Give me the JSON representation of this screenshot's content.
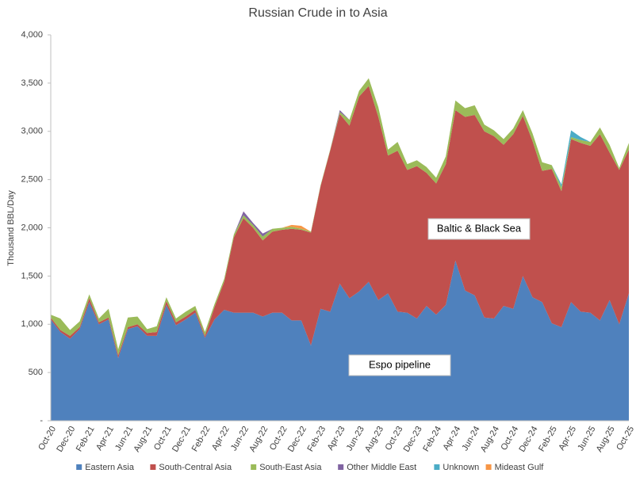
{
  "chart_data": {
    "type": "stacked_area",
    "title": "Russian Crude in to Asia",
    "y_label": "Thousand BBL/Day",
    "categories": [
      "Oct-20",
      null,
      "Dec-20",
      null,
      "Feb-21",
      null,
      "Apr-21",
      null,
      "Jun-21",
      null,
      "Aug-21",
      null,
      "Oct-21",
      null,
      "Dec-21",
      null,
      "Feb-22",
      null,
      "Apr-22",
      null,
      "Jun-22",
      null,
      "Aug-22",
      null,
      "Oct-22",
      null,
      "Dec-22",
      null,
      "Feb-23",
      null,
      "Apr-23",
      null,
      "Jun-23",
      null,
      "Aug-23",
      null,
      "Oct-23",
      null,
      "Dec-23",
      null,
      "Feb-24",
      null,
      "Apr-24",
      null,
      "Jun-24",
      null,
      "Aug-24",
      null,
      "Oct-24",
      null,
      "Dec-24",
      null,
      "Feb-25",
      null,
      "Apr-25",
      null,
      "Jun-25",
      null,
      "Aug-25",
      null,
      "Oct-25"
    ],
    "series": [
      {
        "name": "Eastern Asia",
        "color": "#4f81bd",
        "values": [
          1050,
          920,
          850,
          950,
          1230,
          1000,
          1050,
          650,
          950,
          980,
          880,
          880,
          1200,
          990,
          1050,
          1120,
          860,
          1050,
          1150,
          1120,
          1120,
          1120,
          1080,
          1120,
          1120,
          1040,
          1040,
          780,
          1160,
          1130,
          1420,
          1270,
          1340,
          1440,
          1250,
          1320,
          1130,
          1120,
          1060,
          1190,
          1100,
          1200,
          1660,
          1350,
          1300,
          1070,
          1060,
          1190,
          1160,
          1500,
          1280,
          1230,
          1010,
          970,
          1230,
          1130,
          1120,
          1040,
          1250,
          1000,
          1320
        ]
      },
      {
        "name": "South-Central Asia",
        "color": "#c0504d",
        "values": [
          20,
          20,
          30,
          20,
          40,
          20,
          20,
          30,
          20,
          20,
          30,
          40,
          40,
          30,
          30,
          30,
          20,
          130,
          290,
          780,
          980,
          880,
          790,
          840,
          860,
          950,
          940,
          1170,
          1270,
          1670,
          1760,
          1790,
          2020,
          2030,
          1900,
          1430,
          1670,
          1480,
          1580,
          1380,
          1360,
          1460,
          1560,
          1800,
          1870,
          1930,
          1890,
          1670,
          1810,
          1660,
          1620,
          1360,
          1600,
          1410,
          1690,
          1750,
          1730,
          1930,
          1530,
          1600,
          1490
        ]
      },
      {
        "name": "South-East Asia",
        "color": "#9bbb59",
        "values": [
          30,
          120,
          60,
          60,
          40,
          40,
          90,
          60,
          100,
          80,
          40,
          60,
          40,
          40,
          50,
          40,
          40,
          30,
          30,
          30,
          30,
          30,
          40,
          30,
          20,
          20,
          10,
          10,
          10,
          10,
          20,
          60,
          60,
          80,
          100,
          60,
          90,
          60,
          60,
          60,
          60,
          80,
          100,
          90,
          100,
          70,
          60,
          60,
          60,
          60,
          80,
          90,
          40,
          40,
          20,
          30,
          40,
          70,
          80,
          20,
          70
        ]
      },
      {
        "name": "Other Middle East",
        "color": "#8064a2",
        "values": [
          0,
          0,
          0,
          0,
          0,
          0,
          0,
          0,
          0,
          0,
          0,
          0,
          0,
          0,
          0,
          0,
          0,
          0,
          0,
          0,
          40,
          20,
          30,
          0,
          0,
          0,
          0,
          0,
          0,
          0,
          20,
          0,
          0,
          0,
          0,
          0,
          0,
          0,
          0,
          0,
          0,
          0,
          0,
          0,
          0,
          0,
          0,
          0,
          0,
          0,
          0,
          0,
          0,
          0,
          0,
          0,
          0,
          0,
          0,
          0,
          0
        ]
      },
      {
        "name": "Unknown",
        "color": "#4bacc6",
        "values": [
          0,
          0,
          0,
          0,
          0,
          0,
          0,
          0,
          0,
          0,
          0,
          0,
          0,
          0,
          0,
          0,
          0,
          0,
          0,
          0,
          0,
          0,
          0,
          0,
          0,
          0,
          0,
          0,
          0,
          0,
          0,
          0,
          0,
          0,
          0,
          0,
          0,
          0,
          0,
          0,
          0,
          0,
          0,
          0,
          0,
          0,
          0,
          0,
          0,
          0,
          0,
          0,
          0,
          30,
          70,
          30,
          0,
          0,
          0,
          0,
          0
        ]
      },
      {
        "name": "Mideast Gulf",
        "color": "#f79646",
        "values": [
          0,
          0,
          0,
          0,
          0,
          0,
          0,
          0,
          0,
          0,
          0,
          0,
          0,
          0,
          0,
          0,
          0,
          0,
          0,
          0,
          0,
          0,
          0,
          0,
          0,
          20,
          30,
          0,
          0,
          0,
          0,
          0,
          0,
          0,
          0,
          0,
          0,
          0,
          0,
          0,
          0,
          0,
          0,
          0,
          0,
          0,
          0,
          0,
          0,
          0,
          0,
          0,
          0,
          0,
          0,
          0,
          0,
          0,
          0,
          0,
          0
        ]
      }
    ],
    "ylim": [
      0,
      4000
    ],
    "yticks": [
      {
        "value": 0,
        "label": "-"
      },
      500,
      {
        "value": 1000,
        "label": "1,000"
      },
      {
        "value": 1500,
        "label": "1,500"
      },
      {
        "value": 2000,
        "label": "2,000"
      },
      {
        "value": 2500,
        "label": "2,500"
      },
      {
        "value": 3000,
        "label": "3,000"
      },
      {
        "value": 3500,
        "label": "3,500"
      },
      {
        "value": 4000,
        "label": "4,000"
      }
    ],
    "grid": false,
    "legend": "bottom",
    "annotations": [
      "Baltic & Black Sea",
      "Espo pipeline"
    ]
  }
}
